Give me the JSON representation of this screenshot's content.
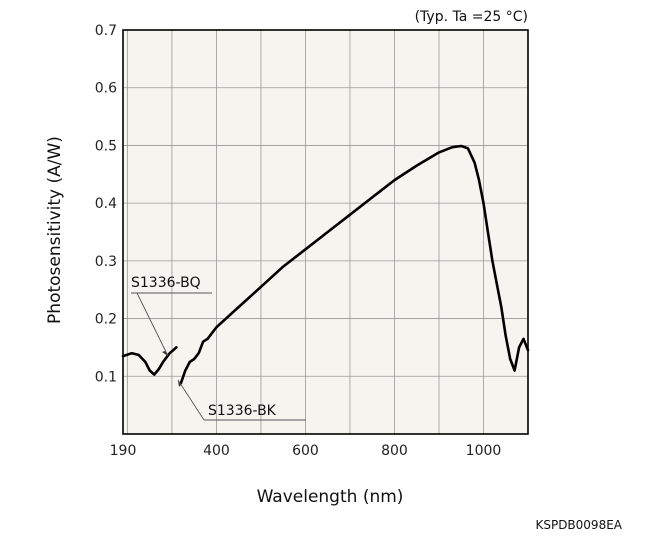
{
  "chart_data": {
    "type": "line",
    "title": "",
    "condition_note": "(Typ. Ta =25 °C)",
    "xlabel": "Wavelength (nm)",
    "ylabel": "Photosensitivity (A/W)",
    "xlim": [
      190,
      1100
    ],
    "ylim": [
      0,
      0.7
    ],
    "x_ticks": [
      190,
      400,
      600,
      800,
      1000
    ],
    "y_ticks": [
      "0.1",
      "0.2",
      "0.3",
      "0.4",
      "0.5",
      "0.6",
      "0.7"
    ],
    "grid": true,
    "doc_code": "KSPDB0098EA",
    "annotations": [
      "S1336-BQ",
      "S1336-BK"
    ],
    "series": [
      {
        "name": "S1336-BQ",
        "x": [
          190,
          210,
          225,
          240,
          250,
          260,
          270,
          280,
          295,
          310
        ],
        "y": [
          0.135,
          0.14,
          0.137,
          0.125,
          0.11,
          0.103,
          0.112,
          0.125,
          0.14,
          0.15
        ]
      },
      {
        "name": "S1336-BK",
        "x": [
          320,
          330,
          340,
          350,
          360,
          370,
          380,
          400,
          450,
          500,
          550,
          600,
          650,
          700,
          750,
          800,
          850,
          900,
          930,
          950,
          965,
          980,
          990,
          1000,
          1010,
          1020,
          1030,
          1040,
          1050,
          1060,
          1070,
          1080,
          1090,
          1100
        ],
        "y": [
          0.088,
          0.11,
          0.125,
          0.13,
          0.14,
          0.16,
          0.165,
          0.185,
          0.22,
          0.255,
          0.29,
          0.32,
          0.35,
          0.38,
          0.41,
          0.44,
          0.465,
          0.488,
          0.497,
          0.499,
          0.495,
          0.47,
          0.44,
          0.4,
          0.35,
          0.3,
          0.26,
          0.22,
          0.17,
          0.13,
          0.11,
          0.15,
          0.165,
          0.145
        ]
      }
    ]
  }
}
